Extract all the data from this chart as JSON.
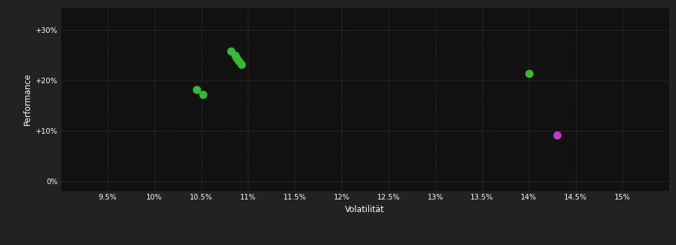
{
  "background_color": "#222222",
  "plot_bg_color": "#111111",
  "grid_color": "#444444",
  "text_color": "#ffffff",
  "axis_label_color": "#ffffff",
  "tick_label_color": "#ffffff",
  "xlabel": "Volatilität",
  "ylabel": "Performance",
  "xlim": [
    0.09,
    0.155
  ],
  "ylim": [
    -0.02,
    0.345
  ],
  "xticks": [
    0.095,
    0.1,
    0.105,
    0.11,
    0.115,
    0.12,
    0.125,
    0.13,
    0.135,
    0.14,
    0.145,
    0.15
  ],
  "yticks": [
    0.0,
    0.1,
    0.2,
    0.3
  ],
  "ytick_labels": [
    "0%",
    "+10%",
    "+20%",
    "+30%"
  ],
  "xtick_labels": [
    "9.5%",
    "10%",
    "10.5%",
    "11%",
    "11.5%",
    "12%",
    "12.5%",
    "13%",
    "13.5%",
    "14%",
    "14.5%",
    "15%"
  ],
  "green_points": [
    [
      0.1045,
      0.182
    ],
    [
      0.1052,
      0.172
    ],
    [
      0.1082,
      0.258
    ],
    [
      0.1086,
      0.25
    ],
    [
      0.1088,
      0.244
    ],
    [
      0.109,
      0.238
    ],
    [
      0.1093,
      0.232
    ],
    [
      0.14,
      0.213
    ]
  ],
  "magenta_points": [
    [
      0.143,
      0.091
    ]
  ],
  "green_color": "#33bb33",
  "magenta_color": "#cc33cc",
  "marker_size": 55
}
